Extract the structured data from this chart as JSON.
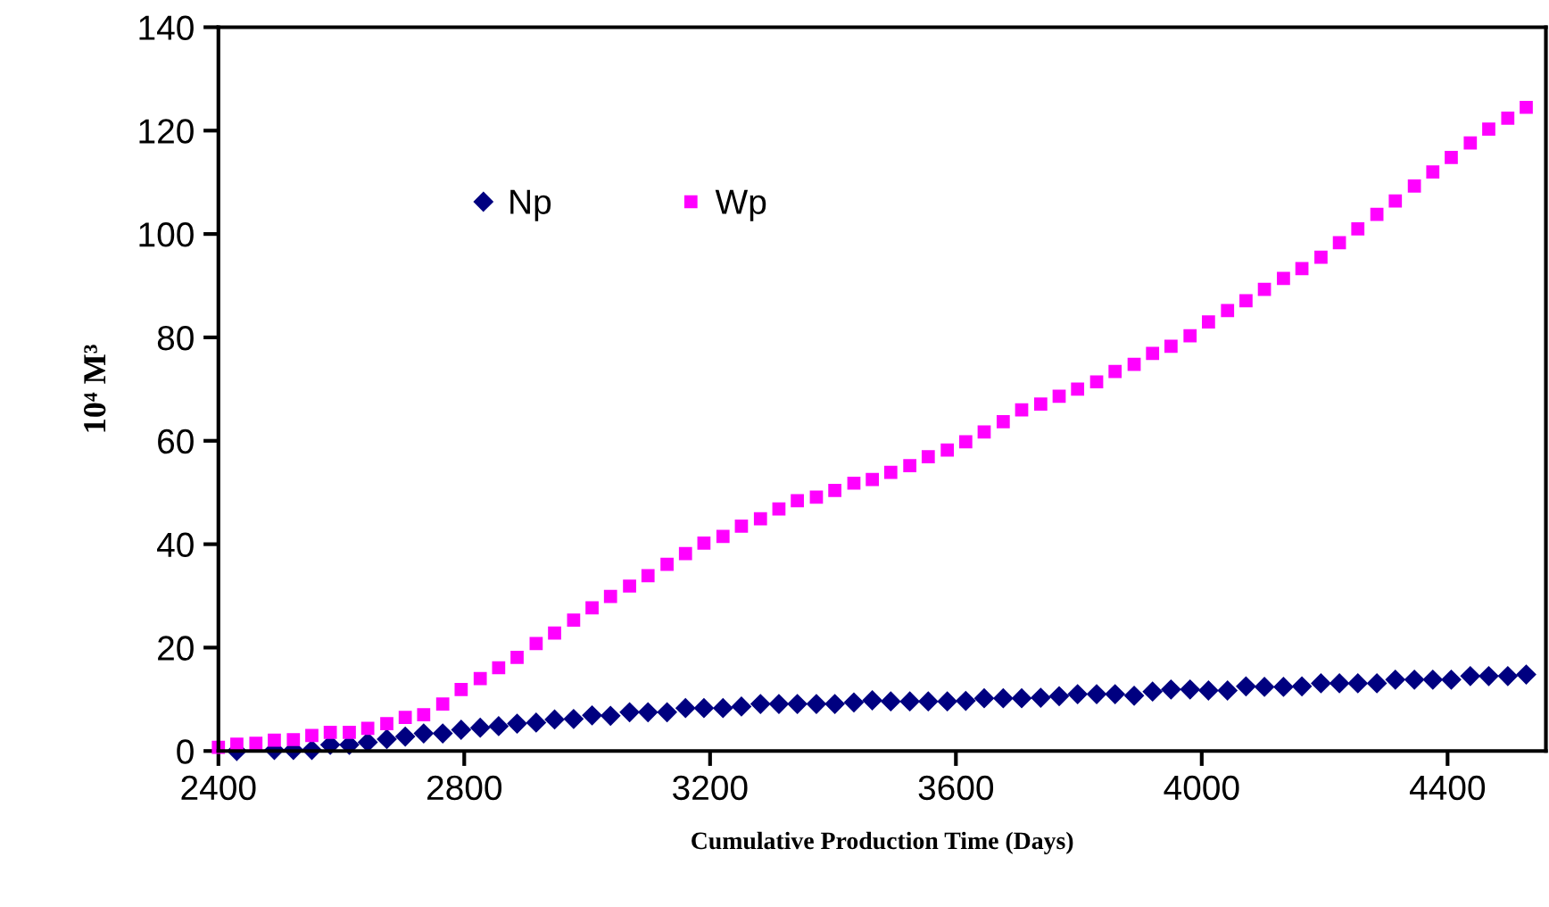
{
  "chart_data": {
    "type": "scatter",
    "xlabel": "Cumulative Production Time (Days)",
    "ylabel": "10⁴ M³",
    "x": [
      2400,
      2430,
      2461,
      2491,
      2522,
      2552,
      2582,
      2613,
      2643,
      2674,
      2704,
      2734,
      2765,
      2795,
      2826,
      2856,
      2886,
      2917,
      2947,
      2978,
      3008,
      3038,
      3069,
      3099,
      3130,
      3160,
      3190,
      3221,
      3251,
      3282,
      3312,
      3342,
      3373,
      3403,
      3434,
      3464,
      3494,
      3525,
      3555,
      3586,
      3616,
      3646,
      3677,
      3707,
      3738,
      3768,
      3798,
      3829,
      3859,
      3890,
      3920,
      3950,
      3981,
      4011,
      4042,
      4072,
      4102,
      4133,
      4163,
      4194,
      4224,
      4254,
      4285,
      4315,
      4346,
      4376,
      4406,
      4437,
      4467,
      4498,
      4528
    ],
    "series": [
      {
        "name": "Np",
        "color": "#000080",
        "marker": "diamond",
        "values": [
          null,
          0.0,
          null,
          0.2,
          0.2,
          0.2,
          1.2,
          1.2,
          1.7,
          2.3,
          2.8,
          3.4,
          3.4,
          4.1,
          4.5,
          4.8,
          5.3,
          5.5,
          6.1,
          6.2,
          6.9,
          6.8,
          7.5,
          7.5,
          7.5,
          8.3,
          8.3,
          8.3,
          8.6,
          9.1,
          9.1,
          9.1,
          9.1,
          9.1,
          9.4,
          9.8,
          9.6,
          9.6,
          9.6,
          9.6,
          9.7,
          10.2,
          10.2,
          10.2,
          10.3,
          10.6,
          11.0,
          11.0,
          11.0,
          10.7,
          11.5,
          11.9,
          11.9,
          11.7,
          11.7,
          12.5,
          12.4,
          12.4,
          12.5,
          13.1,
          13.1,
          13.1,
          13.1,
          13.8,
          13.8,
          13.8,
          13.8,
          14.5,
          14.5,
          14.5,
          14.8
        ]
      },
      {
        "name": "Wp",
        "color": "#ff00ff",
        "marker": "square",
        "values": [
          0.7,
          1.3,
          1.5,
          2.1,
          2.2,
          3.0,
          3.6,
          3.6,
          4.4,
          5.3,
          6.5,
          7.0,
          9.1,
          11.9,
          14.0,
          16.1,
          18.1,
          20.8,
          22.8,
          25.3,
          27.7,
          29.9,
          31.9,
          33.9,
          36.1,
          38.2,
          40.2,
          41.5,
          43.5,
          44.9,
          46.8,
          48.4,
          49.1,
          50.4,
          51.8,
          52.5,
          53.9,
          55.2,
          56.9,
          58.2,
          59.8,
          61.7,
          63.7,
          66.0,
          67.1,
          68.6,
          70.0,
          71.4,
          73.4,
          74.8,
          76.9,
          78.3,
          80.3,
          83.0,
          85.2,
          87.1,
          89.3,
          91.4,
          93.3,
          95.5,
          98.3,
          101.0,
          103.8,
          106.4,
          109.3,
          112.0,
          114.8,
          117.6,
          120.3,
          122.4,
          124.5
        ]
      }
    ],
    "xlim": [
      2400,
      4560
    ],
    "xticks": [
      2400,
      2800,
      3200,
      3600,
      4000,
      4400
    ],
    "ylim": [
      0,
      140
    ],
    "yticks": [
      0,
      20,
      40,
      60,
      80,
      100,
      120,
      140
    ],
    "grid": false,
    "legend": "top"
  }
}
